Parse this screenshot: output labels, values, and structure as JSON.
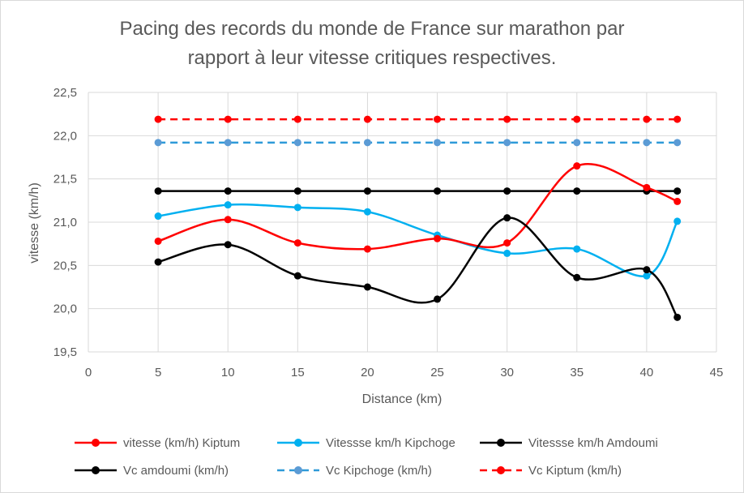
{
  "chart_data": {
    "type": "line",
    "title_line1": "Pacing des records du monde de France sur marathon par",
    "title_line2": "rapport à leur vitesse critiques respectives.",
    "xlabel": "Distance (km)",
    "ylabel": "vitesse (km/h)",
    "xlim": [
      0,
      45
    ],
    "ylim": [
      19.5,
      22.5
    ],
    "x_ticks": [
      "0",
      "5",
      "10",
      "15",
      "20",
      "25",
      "30",
      "35",
      "40",
      "45"
    ],
    "y_ticks": [
      "19,5",
      "20,0",
      "20,5",
      "21,0",
      "21,5",
      "22,0",
      "22,5"
    ],
    "grid": "vertical and horizontal",
    "legend_position": "bottom",
    "x": [
      5,
      10,
      15,
      20,
      25,
      30,
      35,
      40,
      42.195
    ],
    "series": [
      {
        "name": "vitesse (km/h) Kiptum",
        "color": "#ff0000",
        "style": "smooth",
        "values": [
          20.78,
          21.03,
          20.76,
          20.69,
          20.81,
          20.76,
          21.65,
          21.4,
          21.24
        ]
      },
      {
        "name": "Vitessse km/h Kipchoge",
        "color": "#00b0f0",
        "style": "smooth",
        "values": [
          21.07,
          21.2,
          21.17,
          21.12,
          20.85,
          20.64,
          20.69,
          20.38,
          21.01
        ]
      },
      {
        "name": "Vitessse km/h Amdoumi",
        "color": "#000000",
        "style": "smooth",
        "values": [
          20.54,
          20.74,
          20.38,
          20.25,
          20.11,
          21.05,
          20.36,
          20.45,
          19.9
        ]
      },
      {
        "name": "Vc amdoumi (km/h)",
        "color": "#000000",
        "style": "solid",
        "values": [
          21.36,
          21.36,
          21.36,
          21.36,
          21.36,
          21.36,
          21.36,
          21.36,
          21.36
        ]
      },
      {
        "name": "Vc Kipchoge (km/h)",
        "color": "#2e9ad8",
        "style": "dashed",
        "marker_color": "#5b9bd5",
        "values": [
          21.92,
          21.92,
          21.92,
          21.92,
          21.92,
          21.92,
          21.92,
          21.92,
          21.92
        ]
      },
      {
        "name": "Vc Kiptum (km/h)",
        "color": "#ff0000",
        "style": "dashed",
        "values": [
          22.19,
          22.19,
          22.19,
          22.19,
          22.19,
          22.19,
          22.19,
          22.19,
          22.19
        ]
      }
    ]
  }
}
